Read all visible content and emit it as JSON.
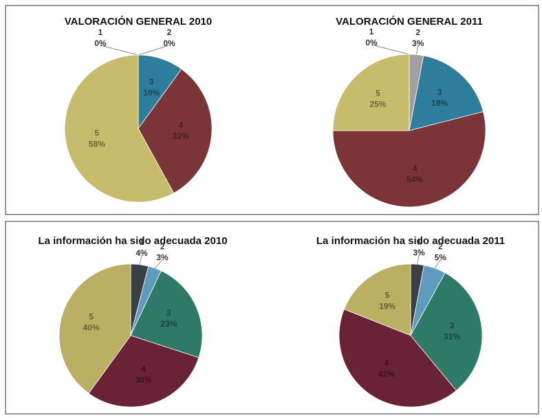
{
  "chart_data": [
    {
      "type": "pie",
      "title": "VALORACIÓN GENERAL 2010",
      "categories": [
        "1",
        "2",
        "3",
        "4",
        "5"
      ],
      "values": [
        0,
        0,
        10,
        32,
        58
      ],
      "value_labels": [
        "0%",
        "0%",
        "10%",
        "32%",
        "58%"
      ],
      "colors": [
        "#5a5a5a",
        "#a0a0a0",
        "#2f7d9c",
        "#7b3539",
        "#c7bb6c"
      ]
    },
    {
      "type": "pie",
      "title": "VALORACIÓN GENERAL 2011",
      "categories": [
        "1",
        "2",
        "3",
        "4",
        "5"
      ],
      "values": [
        0,
        3,
        18,
        54,
        25
      ],
      "value_labels": [
        "0%",
        "3%",
        "18%",
        "54%",
        "25%"
      ],
      "colors": [
        "#5a5a5a",
        "#a0a0a0",
        "#2f7d9c",
        "#7b3539",
        "#c7bb6c"
      ]
    },
    {
      "type": "pie",
      "title": "La información ha sido adecuada 2010",
      "categories": [
        "1",
        "2",
        "3",
        "4",
        "5"
      ],
      "values": [
        4,
        3,
        23,
        30,
        40
      ],
      "value_labels": [
        "4%",
        "3%",
        "23%",
        "30%",
        "40%"
      ],
      "colors": [
        "#3b3e45",
        "#5f9bbd",
        "#2f7a66",
        "#6a2236",
        "#bbaf64"
      ]
    },
    {
      "type": "pie",
      "title": "La información ha sido adecuada 2011",
      "categories": [
        "1",
        "2",
        "3",
        "4",
        "5"
      ],
      "values": [
        3,
        5,
        31,
        42,
        19
      ],
      "value_labels": [
        "3%",
        "5%",
        "31%",
        "42%",
        "19%"
      ],
      "colors": [
        "#3b3e45",
        "#5f9bbd",
        "#2f7a66",
        "#6a2236",
        "#bbaf64"
      ]
    }
  ]
}
